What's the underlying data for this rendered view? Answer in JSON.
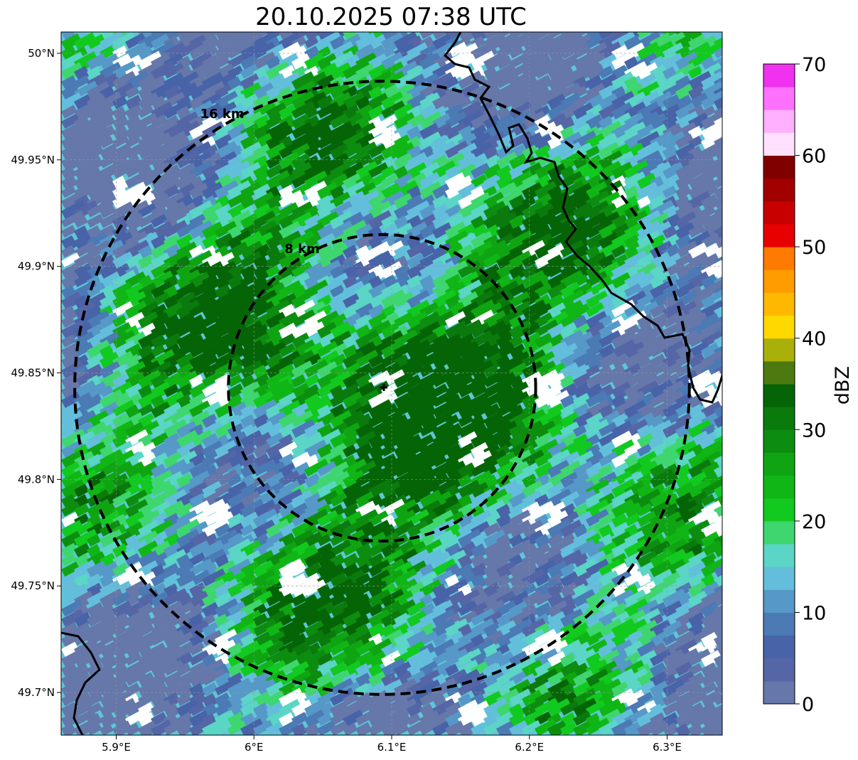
{
  "title": "20.10.2025 07:38 UTC",
  "map": {
    "lon_range": [
      5.86,
      6.34
    ],
    "lat_range": [
      49.68,
      50.01
    ],
    "radar_center": {
      "lon": 6.093,
      "lat": 49.843
    },
    "rings": [
      {
        "label": "8 km",
        "radius_km": 8
      },
      {
        "label": "16 km",
        "radius_km": 16
      }
    ],
    "x_ticks": [
      {
        "value": 5.9,
        "label": "5.9°E"
      },
      {
        "value": 6.0,
        "label": "6°E"
      },
      {
        "value": 6.1,
        "label": "6.1°E"
      },
      {
        "value": 6.2,
        "label": "6.2°E"
      },
      {
        "value": 6.3,
        "label": "6.3°E"
      }
    ],
    "y_ticks": [
      {
        "value": 50.0,
        "label": "50°N"
      },
      {
        "value": 49.95,
        "label": "49.95°N"
      },
      {
        "value": 49.9,
        "label": "49.9°N"
      },
      {
        "value": 49.85,
        "label": "49.85°N"
      },
      {
        "value": 49.8,
        "label": "49.8°N"
      },
      {
        "value": 49.75,
        "label": "49.75°N"
      },
      {
        "value": 49.7,
        "label": "49.7°N"
      }
    ],
    "gridlines": true
  },
  "colorbar": {
    "label": "dBZ",
    "min": 0,
    "max": 70,
    "ticks": [
      {
        "value": 0,
        "label": "0"
      },
      {
        "value": 10,
        "label": "10"
      },
      {
        "value": 20,
        "label": "20"
      },
      {
        "value": 30,
        "label": "30"
      },
      {
        "value": 40,
        "label": "40"
      },
      {
        "value": 50,
        "label": "50"
      },
      {
        "value": 60,
        "label": "60"
      },
      {
        "value": 70,
        "label": "70"
      }
    ],
    "colors": [
      "#6677aa",
      "#5566a6",
      "#4863a8",
      "#4b7ab5",
      "#5698c8",
      "#63bedc",
      "#5bd5c6",
      "#3ed66e",
      "#12c920",
      "#10b616",
      "#0fa512",
      "#0d8d10",
      "#0a7a0d",
      "#056506",
      "#4d7a10",
      "#aab00a",
      "#ffd800",
      "#ffb800",
      "#ff9c00",
      "#ff7a00",
      "#e60000",
      "#c80000",
      "#a20000",
      "#800000",
      "#ffe0ff",
      "#ffb0ff",
      "#ff70ff",
      "#f032f0"
    ]
  }
}
